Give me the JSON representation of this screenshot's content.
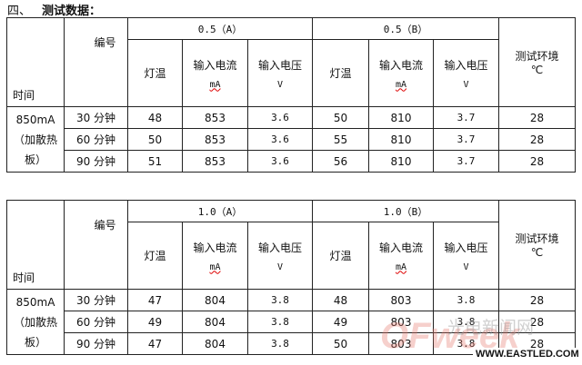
{
  "heading": {
    "number": "四、",
    "title": "测试数据："
  },
  "tables": [
    {
      "time_label": "时间",
      "code_label": "编号",
      "group_a": "0.5（A）",
      "group_b": "0.5（B）",
      "env_label": "测试环境",
      "env_unit": "℃",
      "col_temp": "灯温",
      "col_current": "输入电流",
      "col_current_unit": "mA",
      "col_voltage": "输入电压",
      "col_voltage_unit": "V",
      "condition": "850mA（加散热板）",
      "rows": [
        {
          "time": "30 分钟",
          "a_temp": "48",
          "a_current": "853",
          "a_voltage": "3.6",
          "b_temp": "50",
          "b_current": "810",
          "b_voltage": "3.7",
          "env": "28"
        },
        {
          "time": "60 分钟",
          "a_temp": "50",
          "a_current": "853",
          "a_voltage": "3.6",
          "b_temp": "55",
          "b_current": "810",
          "b_voltage": "3.7",
          "env": "28"
        },
        {
          "time": "90 分钟",
          "a_temp": "51",
          "a_current": "853",
          "a_voltage": "3.6",
          "b_temp": "56",
          "b_current": "810",
          "b_voltage": "3.7",
          "env": "28"
        }
      ]
    },
    {
      "time_label": "时间",
      "code_label": "编号",
      "group_a": "1.0（A）",
      "group_b": "1.0（B）",
      "env_label": "测试环境",
      "env_unit": "℃",
      "col_temp": "灯温",
      "col_current": "输入电流",
      "col_current_unit": "mA",
      "col_voltage": "输入电压",
      "col_voltage_unit": "V",
      "condition": "850mA（加散热板）",
      "rows": [
        {
          "time": "30 分钟",
          "a_temp": "47",
          "a_current": "804",
          "a_voltage": "3.8",
          "b_temp": "48",
          "b_current": "803",
          "b_voltage": "3.8",
          "env": "28"
        },
        {
          "time": "60 分钟",
          "a_temp": "49",
          "a_current": "804",
          "a_voltage": "3.8",
          "b_temp": "49",
          "b_current": "803",
          "b_voltage": "3.8",
          "env": "28"
        },
        {
          "time": "90 分钟",
          "a_temp": "47",
          "a_current": "804",
          "a_voltage": "3.8",
          "b_temp": "50",
          "b_current": "803",
          "b_voltage": "3.8",
          "env": "28"
        }
      ]
    }
  ],
  "watermark": {
    "logo": "OFweek",
    "cn": "光电新闻网",
    "site": "WWW.EASTLED.COM"
  }
}
